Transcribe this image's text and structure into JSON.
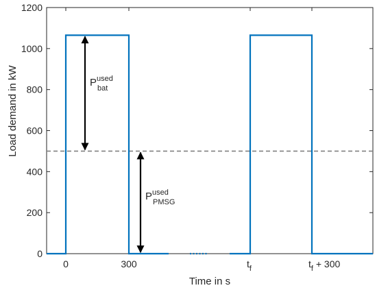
{
  "chart_data": {
    "type": "line",
    "title": "",
    "xlabel": "Time in s",
    "ylabel": "Load demand in kW",
    "ylim": [
      0,
      1200
    ],
    "y_ticks": [
      0,
      200,
      400,
      600,
      800,
      1000,
      1200
    ],
    "x_ticks": [
      {
        "label": "0"
      },
      {
        "label": "300"
      },
      {
        "label": "t",
        "sub": "f"
      },
      {
        "label": "t",
        "sub": "f",
        "suffix": " + 300"
      }
    ],
    "series": [
      {
        "segment": "first_cycle",
        "points": [
          {
            "x": "before 0",
            "y": 0
          },
          {
            "x": "0",
            "y": 0
          },
          {
            "x": "0",
            "y": 1065
          },
          {
            "x": "300",
            "y": 1065
          },
          {
            "x": "300",
            "y": 0
          },
          {
            "x": "after 300",
            "y": 0
          }
        ]
      },
      {
        "segment": "second_cycle",
        "points": [
          {
            "x": "before t_f",
            "y": 0
          },
          {
            "x": "t_f",
            "y": 0
          },
          {
            "x": "t_f",
            "y": 1065
          },
          {
            "x": "t_f + 300",
            "y": 1065
          },
          {
            "x": "t_f + 300",
            "y": 0
          },
          {
            "x": "after t_f + 300",
            "y": 0
          }
        ]
      }
    ],
    "reference_line": {
      "y": 500,
      "style": "dashed"
    },
    "gap_marker": "dotted",
    "annotations": [
      {
        "main": "P",
        "sup": "used",
        "sub": "bat",
        "from_y": 1065,
        "to_y": 500
      },
      {
        "main": "P",
        "sup": "used",
        "sub": "PMSG",
        "from_y": 500,
        "to_y": 0
      }
    ],
    "grid": false,
    "colors": {
      "series": "#0072BD",
      "reference": "#808080",
      "arrow": "#000000"
    }
  }
}
